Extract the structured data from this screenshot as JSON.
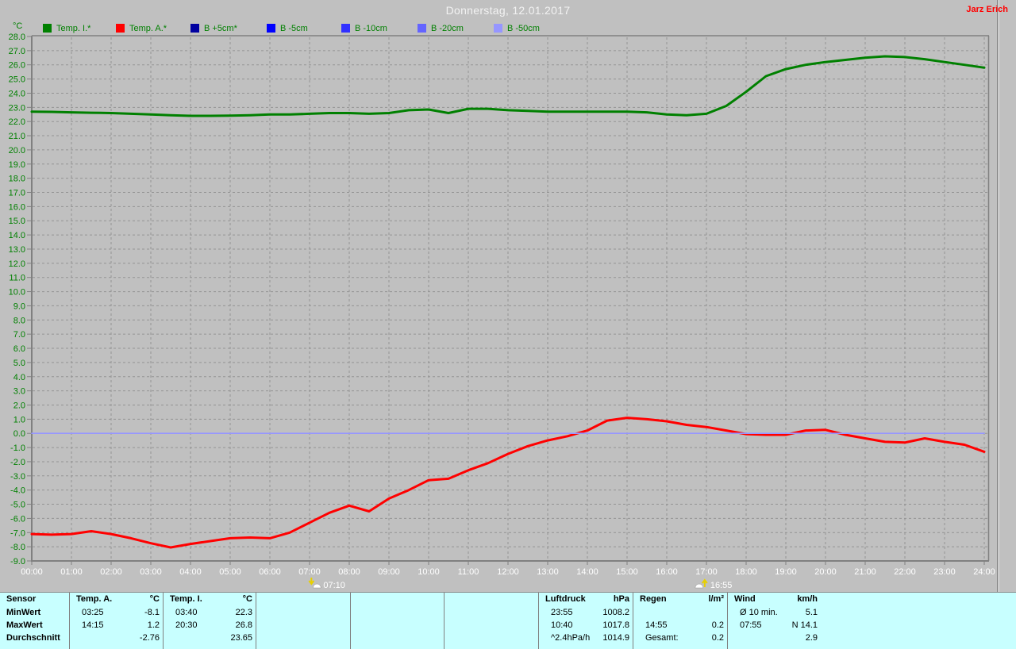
{
  "header": {
    "title": "Donnerstag, 12.01.2017",
    "user": "Jarz Erich"
  },
  "legend": {
    "unit": "°C",
    "items": [
      {
        "label": "Temp. I.*",
        "color": "#008000"
      },
      {
        "label": "Temp. A.*",
        "color": "#ff0000"
      },
      {
        "label": "B +5cm*",
        "color": "#0000a0"
      },
      {
        "label": "B -5cm",
        "color": "#0000ff"
      },
      {
        "label": "B -10cm",
        "color": "#3030ff"
      },
      {
        "label": "B -20cm",
        "color": "#6464ff"
      },
      {
        "label": "B -50cm",
        "color": "#9696ff"
      }
    ]
  },
  "chart_data": {
    "type": "line",
    "title": "Donnerstag, 12.01.2017",
    "ylabel": "°C",
    "ylim": [
      -9.0,
      28.0
    ],
    "y_tick_step": 1.0,
    "x_hours_range": [
      0,
      24
    ],
    "x_step_hours": 0.5,
    "x_tick_labels": [
      "00:00",
      "01:00",
      "02:00",
      "03:00",
      "04:00",
      "05:00",
      "06:00",
      "07:00",
      "08:00",
      "09:00",
      "10:00",
      "11:00",
      "12:00",
      "13:00",
      "14:00",
      "15:00",
      "16:00",
      "17:00",
      "18:00",
      "19:00",
      "20:00",
      "21:00",
      "22:00",
      "23:00",
      "24:00"
    ],
    "grid": "dashed-gray",
    "axis_label_color_y": "#008000",
    "axis_label_color_x": "#ffffff",
    "series": [
      {
        "name": "Temp. I.*",
        "color": "#008000",
        "values": [
          22.7,
          22.68,
          22.65,
          22.62,
          22.6,
          22.55,
          22.5,
          22.45,
          22.4,
          22.4,
          22.42,
          22.45,
          22.5,
          22.5,
          22.55,
          22.6,
          22.6,
          22.55,
          22.6,
          22.8,
          22.85,
          22.6,
          22.9,
          22.9,
          22.8,
          22.75,
          22.7,
          22.7,
          22.7,
          22.7,
          22.7,
          22.65,
          22.5,
          22.45,
          22.55,
          23.1,
          24.1,
          25.2,
          25.7,
          26.0,
          26.2,
          26.35,
          26.5,
          26.6,
          26.55,
          26.4,
          26.2,
          26.0,
          25.8
        ]
      },
      {
        "name": "Temp. A.*",
        "color": "#ff0000",
        "values": [
          -7.1,
          -7.15,
          -7.1,
          -6.9,
          -7.1,
          -7.4,
          -7.75,
          -8.05,
          -7.8,
          -7.6,
          -7.4,
          -7.35,
          -7.4,
          -7.0,
          -6.3,
          -5.6,
          -5.1,
          -5.5,
          -4.6,
          -4.0,
          -3.3,
          -3.2,
          -2.6,
          -2.1,
          -1.45,
          -0.9,
          -0.5,
          -0.2,
          0.2,
          0.9,
          1.1,
          1.0,
          0.85,
          0.6,
          0.45,
          0.2,
          -0.05,
          -0.1,
          -0.1,
          0.2,
          0.25,
          -0.1,
          -0.35,
          -0.6,
          -0.65,
          -0.35,
          -0.6,
          -0.8,
          -1.3
        ]
      },
      {
        "name": "B soil sensors (overlapping at zero)",
        "color": "#9696ff",
        "values": [
          0,
          0,
          0,
          0,
          0,
          0,
          0,
          0,
          0,
          0,
          0,
          0,
          0,
          0,
          0,
          0,
          0,
          0,
          0,
          0,
          0,
          0,
          0,
          0,
          0,
          0,
          0,
          0,
          0,
          0,
          0,
          0,
          0,
          0,
          0,
          0,
          0,
          0,
          0,
          0,
          0,
          0,
          0,
          0,
          0,
          0,
          0,
          0,
          0
        ]
      }
    ],
    "markers": [
      {
        "label": "07:10",
        "hour": 7.1667,
        "type": "sunrise"
      },
      {
        "label": "16:55",
        "hour": 16.9167,
        "type": "sunset"
      }
    ]
  },
  "table": {
    "row_labels": [
      "Sensor",
      "MinWert",
      "MaxWert",
      "Durchschnitt"
    ],
    "columns": [
      {
        "name": "Temp. A.",
        "unit": "°C",
        "rows": [
          [
            "03:25",
            "-8.1"
          ],
          [
            "14:15",
            "1.2"
          ],
          [
            "",
            "-2.76"
          ]
        ]
      },
      {
        "name": "Temp. I.",
        "unit": "°C",
        "rows": [
          [
            "03:40",
            "22.3"
          ],
          [
            "20:30",
            "26.8"
          ],
          [
            "",
            "23.65"
          ]
        ]
      },
      {
        "name": "",
        "unit": "",
        "rows": [
          [
            "",
            ""
          ],
          [
            "",
            ""
          ],
          [
            "",
            ""
          ]
        ]
      },
      {
        "name": "",
        "unit": "",
        "rows": [
          [
            "",
            ""
          ],
          [
            "",
            ""
          ],
          [
            "",
            ""
          ]
        ]
      },
      {
        "name": "",
        "unit": "",
        "rows": [
          [
            "",
            ""
          ],
          [
            "",
            ""
          ],
          [
            "",
            ""
          ]
        ]
      },
      {
        "name": "Luftdruck",
        "unit": "hPa",
        "rows": [
          [
            "23:55",
            "1008.2"
          ],
          [
            "10:40",
            "1017.8"
          ],
          [
            "^2.4hPa/h",
            "1014.9"
          ]
        ]
      },
      {
        "name": "Regen",
        "unit": "l/m²",
        "rows": [
          [
            "",
            ""
          ],
          [
            "14:55",
            "0.2"
          ],
          [
            "Gesamt:",
            "0.2"
          ]
        ]
      },
      {
        "name": "Wind",
        "unit": "km/h",
        "rows": [
          [
            "Ø 10 min.",
            "5.1"
          ],
          [
            "07:55",
            "N 14.1"
          ],
          [
            "",
            "2.9"
          ]
        ]
      }
    ]
  }
}
